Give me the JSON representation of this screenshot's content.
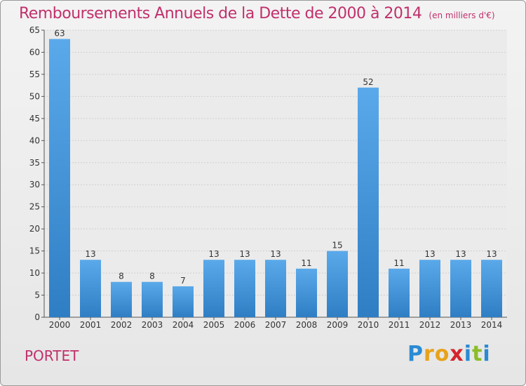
{
  "header": {
    "title": "Remboursements Annuels de la Dette de 2000 à 2014",
    "subtitle": "(en milliers d'€)"
  },
  "footer": {
    "town": "PORTET",
    "logo": "Proxiti"
  },
  "colors": {
    "title": "#c0306b",
    "bar_top": "#5aa9ea",
    "bar_bottom": "#2f7ec4",
    "grid": "#d0d0d0",
    "background": "#ebebeb"
  },
  "chart_data": {
    "type": "bar",
    "title": "Remboursements Annuels de la Dette de 2000 à 2014",
    "subtitle": "(en milliers d'€)",
    "categories": [
      "2000",
      "2001",
      "2002",
      "2003",
      "2004",
      "2005",
      "2006",
      "2007",
      "2008",
      "2009",
      "2010",
      "2011",
      "2012",
      "2013",
      "2014"
    ],
    "values": [
      63,
      13,
      8,
      8,
      7,
      13,
      13,
      13,
      11,
      15,
      52,
      11,
      13,
      13,
      13
    ],
    "ylim": [
      0,
      65
    ],
    "yticks": [
      0,
      5,
      10,
      15,
      20,
      25,
      30,
      35,
      40,
      45,
      50,
      55,
      60,
      65
    ],
    "grid": true,
    "data_labels": true
  }
}
